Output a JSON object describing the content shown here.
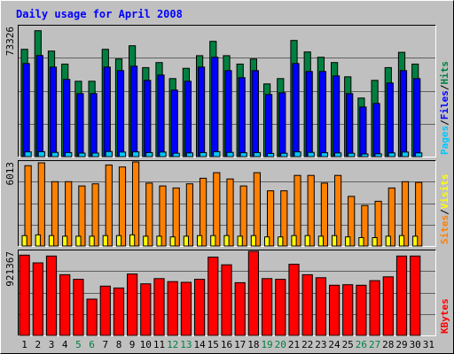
{
  "chart_data": [
    {
      "type": "bar",
      "title": "Daily usage for April 2008",
      "ymax_label": "73326",
      "ymax": 73326,
      "legend": [
        "Pages",
        "Files",
        "Hits"
      ],
      "legend_colors": [
        "#00c8ff",
        "#0000ff",
        "#008040"
      ],
      "categories": [
        "1",
        "2",
        "3",
        "4",
        "5",
        "6",
        "7",
        "8",
        "9",
        "10",
        "11",
        "12",
        "13",
        "14",
        "15",
        "16",
        "17",
        "18",
        "19",
        "20",
        "21",
        "22",
        "23",
        "24",
        "25",
        "26",
        "27",
        "28",
        "29",
        "30",
        "31"
      ],
      "weekend_days": [
        "5",
        "6",
        "12",
        "13",
        "19",
        "20",
        "26",
        "27"
      ],
      "series": [
        {
          "name": "Hits",
          "color": "#008040",
          "values": [
            60500,
            71000,
            59500,
            52200,
            42500,
            42500,
            60500,
            55000,
            62500,
            50200,
            53000,
            44000,
            49800,
            56900,
            65000,
            56900,
            52200,
            55000,
            41000,
            44000,
            65500,
            59000,
            56000,
            53000,
            45000,
            33000,
            43000,
            50200,
            58800,
            52200,
            0
          ]
        },
        {
          "name": "Files",
          "color": "#0000ff",
          "values": [
            52500,
            57000,
            50500,
            43500,
            35500,
            35500,
            50500,
            48500,
            51000,
            43000,
            46000,
            37500,
            42500,
            50500,
            56000,
            48500,
            44500,
            48500,
            35000,
            36000,
            52500,
            48000,
            48000,
            45500,
            35500,
            28000,
            30000,
            41500,
            48500,
            44000,
            0
          ]
        },
        {
          "name": "Pages",
          "color": "#00c8ff",
          "values": [
            2700,
            2800,
            2400,
            2300,
            2000,
            2000,
            2900,
            2600,
            2700,
            2300,
            2600,
            1900,
            2100,
            2300,
            2800,
            2400,
            2200,
            2300,
            1800,
            1900,
            2700,
            2400,
            2200,
            2100,
            1900,
            1500,
            1600,
            2100,
            2600,
            2100,
            0
          ]
        }
      ]
    },
    {
      "type": "bar",
      "ymax_label": "6013",
      "ymax": 6013,
      "legend": [
        "Sites",
        "Visits"
      ],
      "legend_colors": [
        "#ff8000",
        "#ffff00"
      ],
      "categories": [
        "1",
        "2",
        "3",
        "4",
        "5",
        "6",
        "7",
        "8",
        "9",
        "10",
        "11",
        "12",
        "13",
        "14",
        "15",
        "16",
        "17",
        "18",
        "19",
        "20",
        "21",
        "22",
        "23",
        "24",
        "25",
        "26",
        "27",
        "28",
        "29",
        "30",
        "31"
      ],
      "series": [
        {
          "name": "Visits",
          "color": "#ff8000",
          "values": [
            5750,
            5950,
            4600,
            4600,
            4300,
            4450,
            5800,
            5650,
            6013,
            4500,
            4300,
            4150,
            4450,
            4850,
            5250,
            4800,
            4300,
            5250,
            3950,
            3950,
            5050,
            5050,
            4500,
            5050,
            3550,
            2900,
            3200,
            4150,
            4600,
            4550,
            0
          ]
        },
        {
          "name": "Sites",
          "color": "#ffff00",
          "values": [
            750,
            800,
            750,
            700,
            700,
            700,
            750,
            750,
            800,
            700,
            700,
            650,
            700,
            750,
            750,
            750,
            700,
            750,
            650,
            650,
            750,
            750,
            700,
            750,
            650,
            600,
            600,
            700,
            750,
            700,
            0
          ]
        }
      ]
    },
    {
      "type": "bar",
      "ymax_label": "921367",
      "ymax": 921367,
      "legend": [
        "KBytes"
      ],
      "legend_colors": [
        "#ff0000"
      ],
      "categories": [
        "1",
        "2",
        "3",
        "4",
        "5",
        "6",
        "7",
        "8",
        "9",
        "10",
        "11",
        "12",
        "13",
        "14",
        "15",
        "16",
        "17",
        "18",
        "19",
        "20",
        "21",
        "22",
        "23",
        "24",
        "25",
        "26",
        "27",
        "28",
        "29",
        "30",
        "31"
      ],
      "series": [
        {
          "name": "KBytes",
          "color": "#ff0000",
          "values": [
            880000,
            795000,
            870000,
            665000,
            615000,
            398000,
            540000,
            520000,
            673000,
            565000,
            623000,
            590000,
            582000,
            615000,
            858000,
            774000,
            578000,
            921367,
            623000,
            615000,
            780000,
            665000,
            632000,
            550000,
            556000,
            550000,
            600000,
            642000,
            870000,
            870000,
            0
          ]
        }
      ]
    }
  ],
  "colors": {
    "background": "#c0c0c0",
    "plot": "#c0c0c0",
    "title": "#0000ff",
    "gridline": "#606060",
    "weekend_label": "#008040",
    "weekday_label": "#000000"
  }
}
